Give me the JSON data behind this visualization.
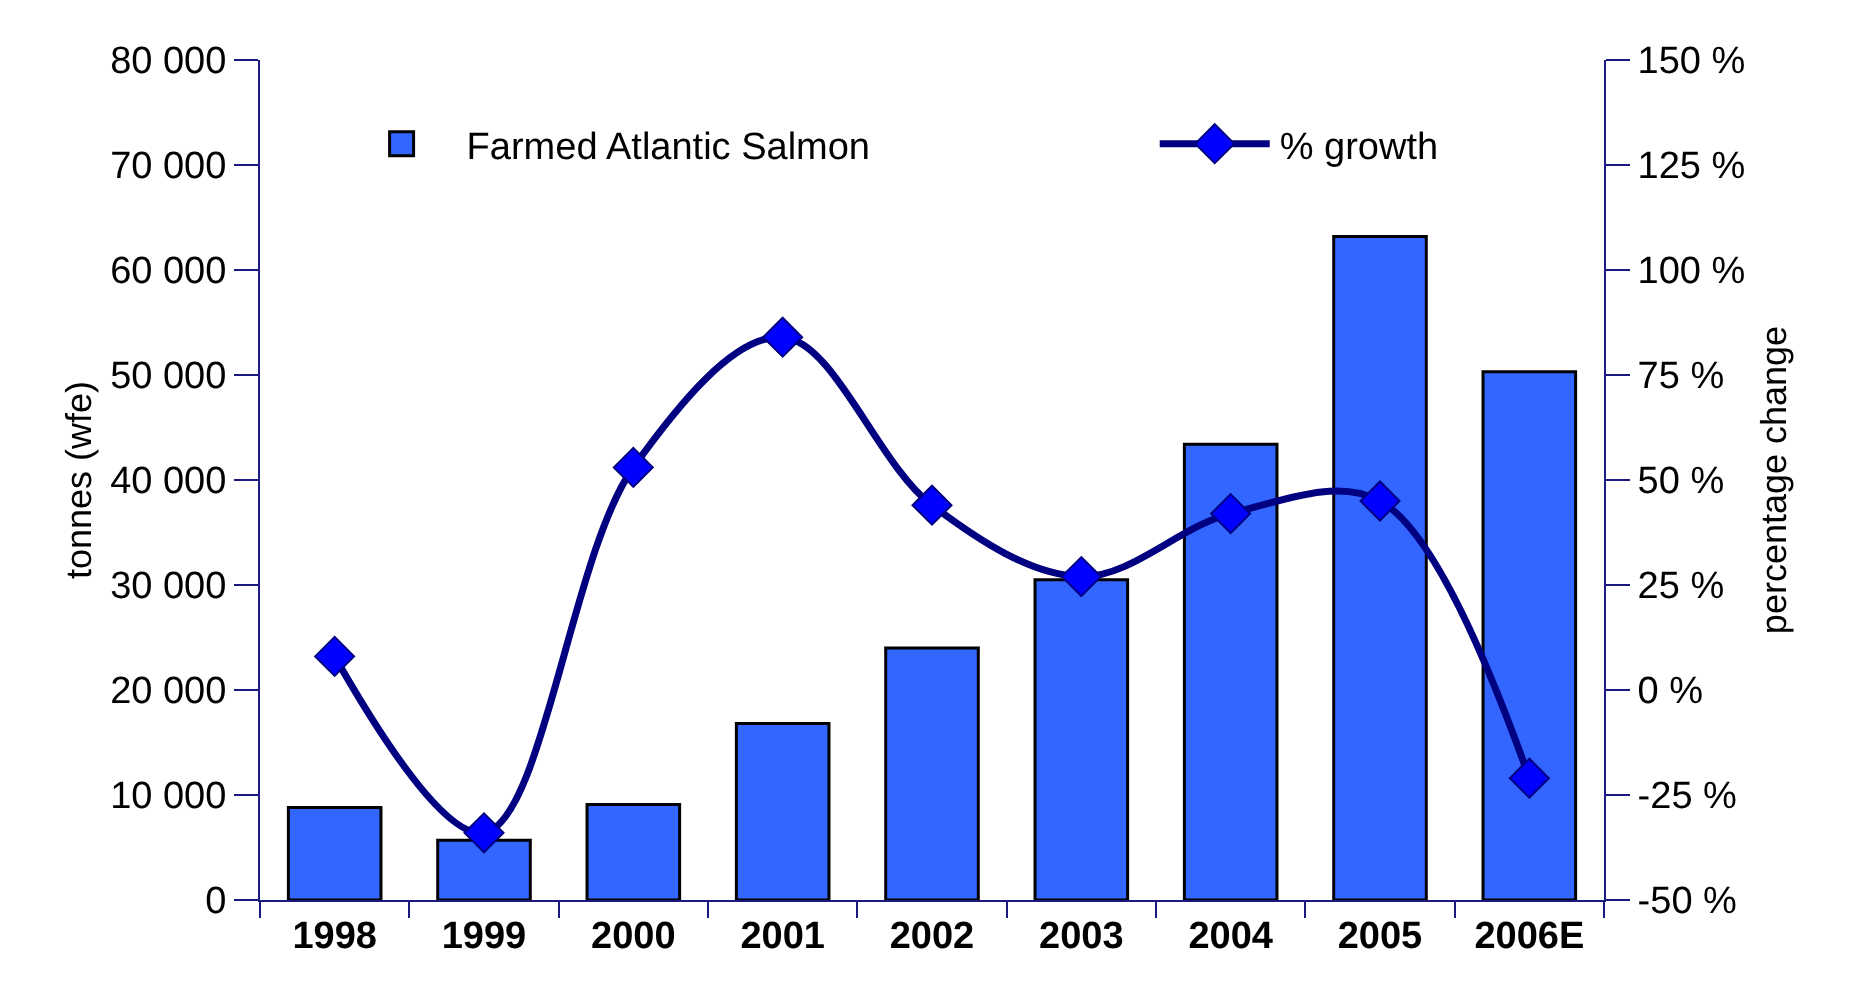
{
  "chart_data": {
    "type": "bar",
    "categories": [
      "1998",
      "1999",
      "2000",
      "2001",
      "2002",
      "2003",
      "2004",
      "2005",
      "2006E"
    ],
    "series": [
      {
        "name": "Farmed Atlantic Salmon",
        "color": "#3366ff",
        "values": [
          8800,
          5700,
          9100,
          16800,
          24000,
          30500,
          43400,
          63200,
          50300
        ]
      },
      {
        "name": "% growth",
        "type": "line",
        "axis": "y2",
        "color": "#000080",
        "values": [
          8,
          -34,
          53,
          84,
          44,
          27,
          42,
          45,
          -21
        ]
      }
    ],
    "ylabel": "tonnes (wfe)",
    "y2label": "percentage change",
    "ylim": [
      0,
      80000
    ],
    "yticks": [
      0,
      {
        "value": 10000,
        "label": "10 000"
      },
      {
        "value": 20000,
        "label": "20 000"
      },
      {
        "value": 30000,
        "label": "30 000"
      },
      {
        "value": 40000,
        "label": "40 000"
      },
      {
        "value": 50000,
        "label": "50 000"
      },
      {
        "value": 60000,
        "label": "60 000"
      },
      {
        "value": 70000,
        "label": "70 000"
      },
      {
        "value": 80000,
        "label": "80 000"
      }
    ],
    "y2lim": [
      -50,
      150
    ],
    "y2ticks": [
      {
        "value": -50,
        "label": "-50 %"
      },
      {
        "value": -25,
        "label": "-25 %"
      },
      {
        "value": 0,
        "label": "0 %"
      },
      {
        "value": 25,
        "label": "25 %"
      },
      {
        "value": 50,
        "label": "50 %"
      },
      {
        "value": 75,
        "label": "75 %"
      },
      {
        "value": 100,
        "label": "100 %"
      },
      {
        "value": 125,
        "label": "125 %"
      },
      {
        "value": 150,
        "label": "150 %"
      }
    ],
    "legend": "top",
    "grid": false,
    "marker": "diamond",
    "line_style": "solid"
  }
}
